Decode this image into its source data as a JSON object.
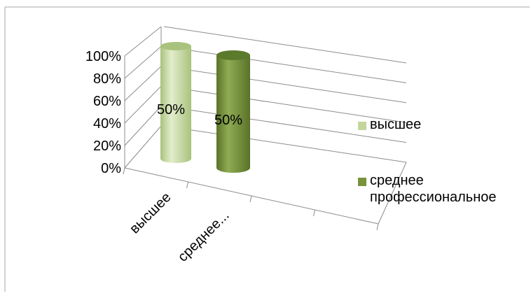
{
  "chart_data": {
    "type": "bar",
    "title": "",
    "xlabel": "",
    "ylabel": "",
    "ylim": [
      0,
      100
    ],
    "y_unit": "%",
    "y_ticks": [
      "0%",
      "20%",
      "40%",
      "60%",
      "80%",
      "100%"
    ],
    "categories": [
      "высшее",
      "среднее профессиональное"
    ],
    "category_tick_labels": [
      "высшее",
      "среднее..."
    ],
    "values": [
      50,
      50
    ],
    "data_labels": [
      "50%",
      "50%"
    ],
    "bar_shape": "3D cylinder",
    "grid": true,
    "legend_position": "right",
    "legend": [
      {
        "name": "высшее",
        "color": "#c3d69b"
      },
      {
        "name": "среднее профессиональное",
        "color": "#77933c"
      }
    ],
    "colors": {
      "bar_1": "#c3d69b",
      "bar_2": "#77933c",
      "gridlines": "#8c8c8c"
    }
  }
}
